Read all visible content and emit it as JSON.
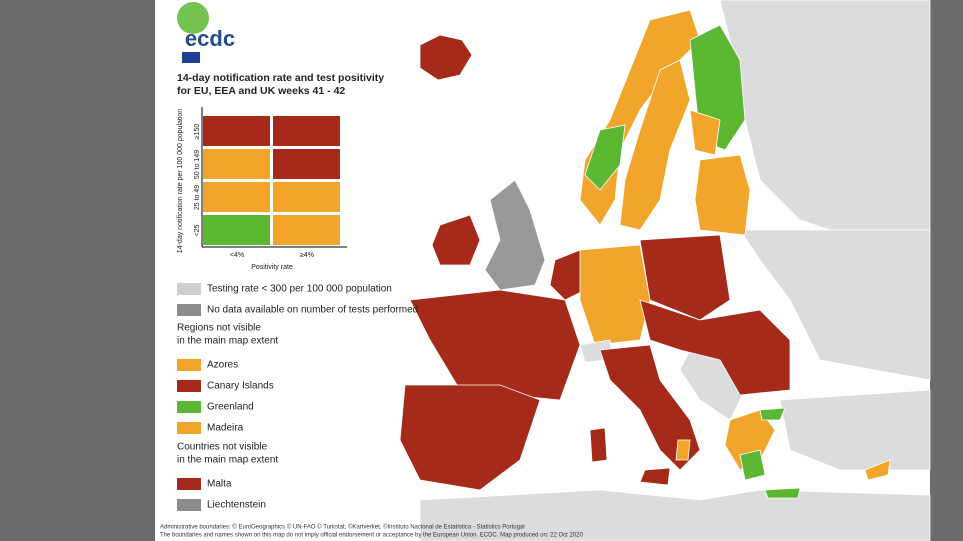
{
  "logo": "ecdc",
  "title_lines": [
    "14-day notification rate and test positivity",
    "for EU, EEA and UK weeks 41 - 42"
  ],
  "matrix": {
    "y_axis_label": "14-day notification rate per 100 000 population",
    "row_labels": [
      "≥150",
      "50 to 149",
      "25 to 49",
      "<25"
    ],
    "column_labels": [
      "<4%",
      "≥4%"
    ],
    "x_axis_label": "Positivity rate"
  },
  "legend": {
    "testing": "Testing rate < 300 per 100 000 population",
    "no_data": "No data available on number of tests performed",
    "regions_heading": [
      "Regions not visible",
      "in the main map extent"
    ],
    "regions": [
      "Azores",
      "Canary Islands",
      "Greenland",
      "Madeira"
    ],
    "countries_heading": [
      "Countries not visible",
      "in the main map extent"
    ],
    "countries": [
      "Malta",
      "Liechtenstein"
    ]
  },
  "footer": [
    "Administrative boundaries: © EuroGeographics © UN-FAO © Turkstat; ©Kartverket; ©Instituto Nacional de Estatística - Statistics Portugal",
    "The boundaries and names shown on this map do not imply official endorsement or acceptance by the European Union. ECDC. Map produced on: 22 Oct 2020"
  ]
}
